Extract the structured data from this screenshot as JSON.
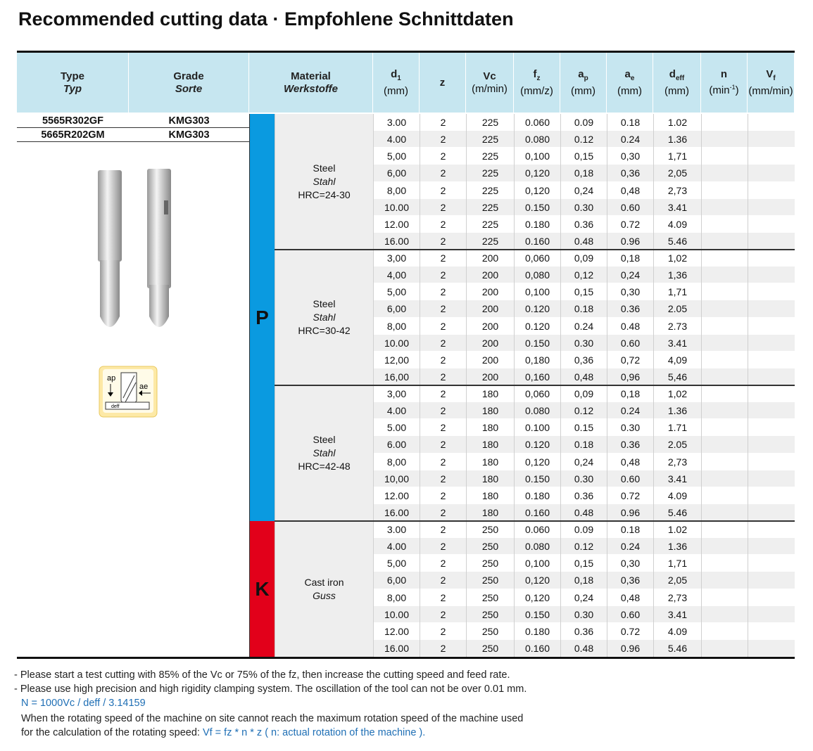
{
  "header": {
    "title": "Recommended cutting data · Empfohlene Schnittdaten"
  },
  "table": {
    "head": {
      "type": "Type",
      "type_de": "Typ",
      "grade": "Grade",
      "grade_de": "Sorte",
      "material": "Material",
      "material_de": "Werkstoffe",
      "columns": [
        {
          "symbol": "d",
          "sub": "1",
          "unit": "(mm)"
        },
        {
          "symbol": "z"
        },
        {
          "symbol": "Vc",
          "unit": "(m/min)"
        },
        {
          "symbol": "f",
          "sub": "z",
          "unit": "(mm/z)"
        },
        {
          "symbol": "a",
          "sub": "p",
          "unit": "(mm)"
        },
        {
          "symbol": "a",
          "sub": "e",
          "unit": "(mm)"
        },
        {
          "symbol": "d",
          "sub": "eff",
          "unit": "(mm)"
        },
        {
          "symbol": "n",
          "unit": "(min",
          "unit_sup": "-1",
          "unit_end": ")"
        },
        {
          "symbol": "V",
          "sub": "f",
          "unit": "(mm/min)"
        }
      ]
    },
    "types": [
      {
        "type": "5565R302GF",
        "grade": "KMG303"
      },
      {
        "type": "5665R202GM",
        "grade": "KMG303"
      }
    ],
    "iso_groups": [
      {
        "letter": "P",
        "materials": [
          {
            "name": "Steel",
            "name_de": "Stahl",
            "hardness": "HRC=24-30",
            "rows": [
              [
                "3.00",
                "2",
                "225",
                "0.060",
                "0.09",
                "0.18",
                "1.02"
              ],
              [
                "4.00",
                "2",
                "225",
                "0.080",
                "0.12",
                "0.24",
                "1.36"
              ],
              [
                "5,00",
                "2",
                "225",
                "0,100",
                "0,15",
                "0,30",
                "1,71"
              ],
              [
                "6,00",
                "2",
                "225",
                "0,120",
                "0,18",
                "0,36",
                "2,05"
              ],
              [
                "8,00",
                "2",
                "225",
                "0,120",
                "0,24",
                "0,48",
                "2,73"
              ],
              [
                "10.00",
                "2",
                "225",
                "0.150",
                "0.30",
                "0.60",
                "3.41"
              ],
              [
                "12.00",
                "2",
                "225",
                "0.180",
                "0.36",
                "0.72",
                "4.09"
              ],
              [
                "16.00",
                "2",
                "225",
                "0.160",
                "0.48",
                "0.96",
                "5.46"
              ]
            ]
          },
          {
            "name": "Steel",
            "name_de": "Stahl",
            "hardness": "HRC=30-42",
            "rows": [
              [
                "3,00",
                "2",
                "200",
                "0,060",
                "0,09",
                "0,18",
                "1,02"
              ],
              [
                "4,00",
                "2",
                "200",
                "0,080",
                "0,12",
                "0,24",
                "1,36"
              ],
              [
                "5,00",
                "2",
                "200",
                "0,100",
                "0,15",
                "0,30",
                "1,71"
              ],
              [
                "6,00",
                "2",
                "200",
                "0.120",
                "0.18",
                "0.36",
                "2.05"
              ],
              [
                "8,00",
                "2",
                "200",
                "0.120",
                "0.24",
                "0.48",
                "2.73"
              ],
              [
                "10.00",
                "2",
                "200",
                "0.150",
                "0.30",
                "0.60",
                "3.41"
              ],
              [
                "12,00",
                "2",
                "200",
                "0,180",
                "0,36",
                "0,72",
                "4,09"
              ],
              [
                "16,00",
                "2",
                "200",
                "0,160",
                "0,48",
                "0,96",
                "5,46"
              ]
            ]
          },
          {
            "name": "Steel",
            "name_de": "Stahl",
            "hardness": "HRC=42-48",
            "rows": [
              [
                "3,00",
                "2",
                "180",
                "0,060",
                "0,09",
                "0,18",
                "1,02"
              ],
              [
                "4.00",
                "2",
                "180",
                "0.080",
                "0.12",
                "0.24",
                "1.36"
              ],
              [
                "5.00",
                "2",
                "180",
                "0.100",
                "0.15",
                "0.30",
                "1.71"
              ],
              [
                "6.00",
                "2",
                "180",
                "0.120",
                "0.18",
                "0.36",
                "2.05"
              ],
              [
                "8,00",
                "2",
                "180",
                "0,120",
                "0,24",
                "0,48",
                "2,73"
              ],
              [
                "10,00",
                "2",
                "180",
                "0.150",
                "0.30",
                "0.60",
                "3.41"
              ],
              [
                "12.00",
                "2",
                "180",
                "0.180",
                "0.36",
                "0.72",
                "4.09"
              ],
              [
                "16.00",
                "2",
                "180",
                "0.160",
                "0.48",
                "0.96",
                "5.46"
              ]
            ]
          }
        ]
      },
      {
        "letter": "K",
        "materials": [
          {
            "name": "Cast iron",
            "name_de": "Guss",
            "rows": [
              [
                "3.00",
                "2",
                "250",
                "0.060",
                "0.09",
                "0.18",
                "1.02"
              ],
              [
                "4.00",
                "2",
                "250",
                "0.080",
                "0.12",
                "0.24",
                "1.36"
              ],
              [
                "5,00",
                "2",
                "250",
                "0,100",
                "0,15",
                "0,30",
                "1,71"
              ],
              [
                "6,00",
                "2",
                "250",
                "0,120",
                "0,18",
                "0,36",
                "2,05"
              ],
              [
                "8,00",
                "2",
                "250",
                "0,120",
                "0,24",
                "0,48",
                "2,73"
              ],
              [
                "10.00",
                "2",
                "250",
                "0.150",
                "0.30",
                "0.60",
                "3.41"
              ],
              [
                "12.00",
                "2",
                "250",
                "0.180",
                "0.36",
                "0.72",
                "4.09"
              ],
              [
                "16.00",
                "2",
                "250",
                "0.160",
                "0.48",
                "0.96",
                "5.46"
              ]
            ]
          }
        ]
      }
    ]
  },
  "icon": {
    "ap": "ap",
    "ae": "ae",
    "deff": "deff"
  },
  "notes": {
    "line1": "- Please start a test cutting with 85% of the Vc or 75% of the fz, then increase the cutting speed and feed rate.",
    "line2": "- Please use high precision and high rigidity clamping system. The oscillation of the tool can not be over 0.01 mm.",
    "formula": "N = 1000Vc / deff / 3.14159",
    "line4": "When the rotating speed of the machine on site cannot reach the maximum rotation speed of the machine used",
    "line5": "for the calculation of the rotating speed:",
    "line5_formula": "Vf = fz * n * z ( n: actual rotation of the machine )."
  }
}
